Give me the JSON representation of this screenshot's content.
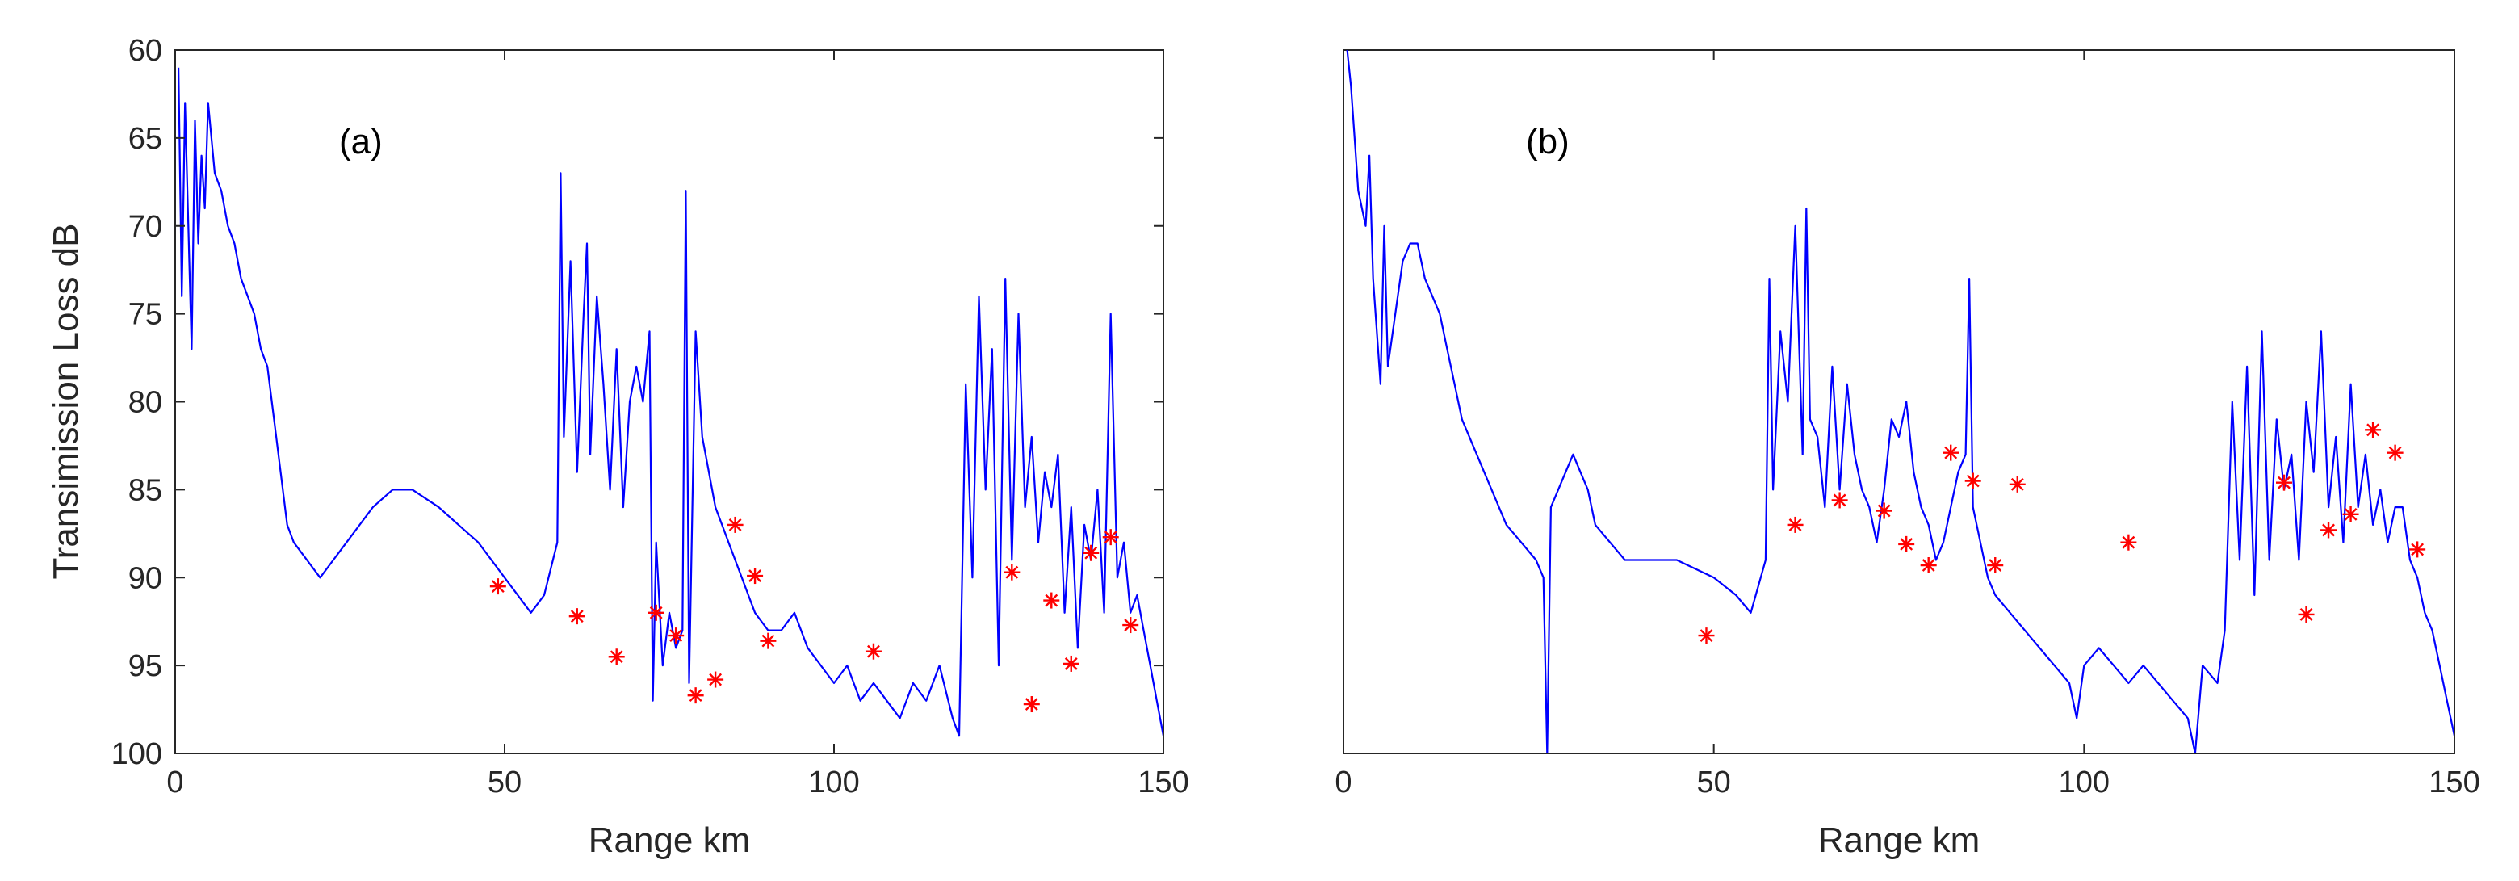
{
  "chart_data": [
    {
      "type": "line",
      "panel_label": "(a)",
      "xlabel": "Range km",
      "ylabel": "Transimission Loss dB",
      "xlim": [
        0,
        150
      ],
      "ylim": [
        60,
        100
      ],
      "y_reversed": true,
      "xticks": [
        0,
        50,
        100,
        150
      ],
      "yticks": [
        60,
        65,
        70,
        75,
        80,
        85,
        90,
        95,
        100
      ],
      "grid": false,
      "line_color": "#0000ff",
      "marker_color": "#ff0000",
      "series": [
        {
          "kind": "line",
          "x": [
            0.5,
            1.0,
            1.5,
            2.0,
            2.5,
            3.0,
            3.5,
            4.0,
            4.5,
            5.0,
            6.0,
            7.0,
            8.0,
            9.0,
            10.0,
            11.0,
            12.0,
            13.0,
            14.0,
            15.0,
            16.0,
            17.0,
            18.0,
            20.0,
            22.0,
            24.0,
            26.0,
            28.0,
            30.0,
            33.0,
            36.0,
            40.0,
            43.0,
            46.0,
            48.0,
            50.0,
            52.0,
            54.0,
            56.0,
            58.0,
            58.5,
            59.0,
            60.0,
            61.0,
            62.0,
            62.5,
            63.0,
            64.0,
            65.0,
            66.0,
            67.0,
            68.0,
            69.0,
            70.0,
            71.0,
            72.0,
            72.5,
            73.0,
            74.0,
            75.0,
            76.0,
            77.0,
            77.5,
            78.0,
            79.0,
            80.0,
            81.0,
            82.0,
            83.0,
            84.0,
            85.0,
            86.0,
            87.0,
            88.0,
            90.0,
            92.0,
            94.0,
            96.0,
            98.0,
            100.0,
            102.0,
            104.0,
            106.0,
            108.0,
            110.0,
            112.0,
            114.0,
            116.0,
            118.0,
            119.0,
            120.0,
            121.0,
            122.0,
            123.0,
            124.0,
            125.0,
            126.0,
            127.0,
            128.0,
            129.0,
            130.0,
            131.0,
            132.0,
            133.0,
            134.0,
            135.0,
            136.0,
            137.0,
            138.0,
            139.0,
            140.0,
            141.0,
            142.0,
            143.0,
            144.0,
            145.0,
            146.0,
            147.0,
            148.0,
            149.0,
            150.0
          ],
          "y": [
            61,
            74,
            63,
            70,
            77,
            64,
            71,
            66,
            69,
            63,
            67,
            68,
            70,
            71,
            73,
            74,
            75,
            77,
            78,
            81,
            84,
            87,
            88,
            89,
            90,
            89,
            88,
            87,
            86,
            85,
            85,
            86,
            87,
            88,
            89,
            90,
            91,
            92,
            91,
            88,
            67,
            82,
            72,
            84,
            75,
            71,
            83,
            74,
            79,
            85,
            77,
            86,
            80,
            78,
            80,
            76,
            97,
            88,
            95,
            92,
            94,
            93,
            68,
            96,
            76,
            82,
            84,
            86,
            87,
            88,
            89,
            90,
            91,
            92,
            93,
            93,
            92,
            94,
            95,
            96,
            95,
            97,
            96,
            97,
            98,
            96,
            97,
            95,
            98,
            99,
            79,
            90,
            74,
            85,
            77,
            95,
            73,
            89,
            75,
            86,
            82,
            88,
            84,
            86,
            83,
            92,
            86,
            94,
            87,
            89,
            85,
            92,
            75,
            90,
            88,
            92,
            91,
            93,
            95,
            97,
            99
          ]
        },
        {
          "kind": "markers",
          "x": [
            49,
            61,
            67,
            73,
            76,
            79,
            82,
            85,
            88,
            90,
            106,
            127,
            130,
            133,
            136,
            139,
            142,
            145
          ],
          "y": [
            90.5,
            92.2,
            94.5,
            92.0,
            93.3,
            96.7,
            95.8,
            87.0,
            89.9,
            93.6,
            94.2,
            89.7,
            97.2,
            91.3,
            94.9,
            88.6,
            87.7,
            92.7
          ]
        }
      ]
    },
    {
      "type": "line",
      "panel_label": "(b)",
      "xlabel": "Range km",
      "ylabel": "",
      "xlim": [
        0,
        150
      ],
      "ylim": [
        60,
        100
      ],
      "y_reversed": true,
      "xticks": [
        0,
        50,
        100,
        150
      ],
      "yticks": [],
      "grid": false,
      "line_color": "#0000ff",
      "marker_color": "#ff0000",
      "series": [
        {
          "kind": "line",
          "x": [
            0.5,
            1.0,
            1.5,
            2.0,
            3.0,
            3.5,
            4.0,
            5.0,
            5.5,
            6.0,
            7.0,
            8.0,
            9.0,
            10.0,
            11.0,
            12.0,
            13.0,
            14.0,
            15.0,
            16.0,
            18.0,
            20.0,
            22.0,
            24.0,
            26.0,
            27.0,
            27.5,
            28.0,
            29.0,
            30.0,
            31.0,
            32.0,
            33.0,
            34.0,
            36.0,
            38.0,
            40.0,
            45.0,
            50.0,
            53.0,
            55.0,
            57.0,
            57.5,
            58.0,
            59.0,
            60.0,
            61.0,
            62.0,
            62.5,
            63.0,
            64.0,
            65.0,
            66.0,
            67.0,
            68.0,
            69.0,
            70.0,
            71.0,
            72.0,
            73.0,
            74.0,
            75.0,
            76.0,
            77.0,
            78.0,
            79.0,
            80.0,
            81.0,
            82.0,
            83.0,
            84.0,
            84.5,
            85.0,
            86.0,
            87.0,
            88.0,
            90.0,
            92.0,
            94.0,
            96.0,
            98.0,
            99.0,
            100.0,
            102.0,
            104.0,
            106.0,
            108.0,
            110.0,
            112.0,
            114.0,
            115.0,
            116.0,
            118.0,
            119.0,
            120.0,
            121.0,
            122.0,
            123.0,
            124.0,
            125.0,
            126.0,
            127.0,
            128.0,
            129.0,
            130.0,
            131.0,
            132.0,
            133.0,
            134.0,
            135.0,
            136.0,
            137.0,
            138.0,
            139.0,
            140.0,
            141.0,
            142.0,
            143.0,
            144.0,
            145.0,
            146.0,
            147.0,
            148.0,
            149.0,
            150.0
          ],
          "y": [
            60,
            62,
            65,
            68,
            70,
            66,
            73,
            79,
            70,
            78,
            75,
            72,
            71,
            71,
            73,
            74,
            75,
            77,
            79,
            81,
            83,
            85,
            87,
            88,
            89,
            90,
            100,
            86,
            85,
            84,
            83,
            84,
            85,
            87,
            88,
            89,
            89,
            89,
            90,
            91,
            92,
            89,
            73,
            85,
            76,
            80,
            70,
            83,
            69,
            81,
            82,
            86,
            78,
            85,
            79,
            83,
            85,
            86,
            88,
            85,
            81,
            82,
            80,
            84,
            86,
            87,
            89,
            88,
            86,
            84,
            83,
            73,
            86,
            88,
            90,
            91,
            92,
            93,
            94,
            95,
            96,
            98,
            95,
            94,
            95,
            96,
            95,
            96,
            97,
            98,
            100,
            95,
            96,
            93,
            80,
            89,
            78,
            91,
            76,
            89,
            81,
            85,
            83,
            89,
            80,
            84,
            76,
            86,
            82,
            88,
            79,
            86,
            83,
            87,
            85,
            88,
            86,
            86,
            89,
            90,
            92,
            93,
            95,
            97,
            99
          ]
        },
        {
          "kind": "markers",
          "x": [
            49,
            61,
            67,
            73,
            76,
            79,
            82,
            85,
            88,
            91,
            106,
            127,
            130,
            133,
            136,
            139,
            142,
            145
          ],
          "y": [
            93.3,
            87.0,
            85.6,
            86.2,
            88.1,
            89.3,
            82.9,
            84.5,
            89.3,
            84.7,
            88.0,
            84.6,
            92.1,
            87.3,
            86.4,
            81.6,
            82.9,
            88.4
          ]
        }
      ]
    }
  ]
}
